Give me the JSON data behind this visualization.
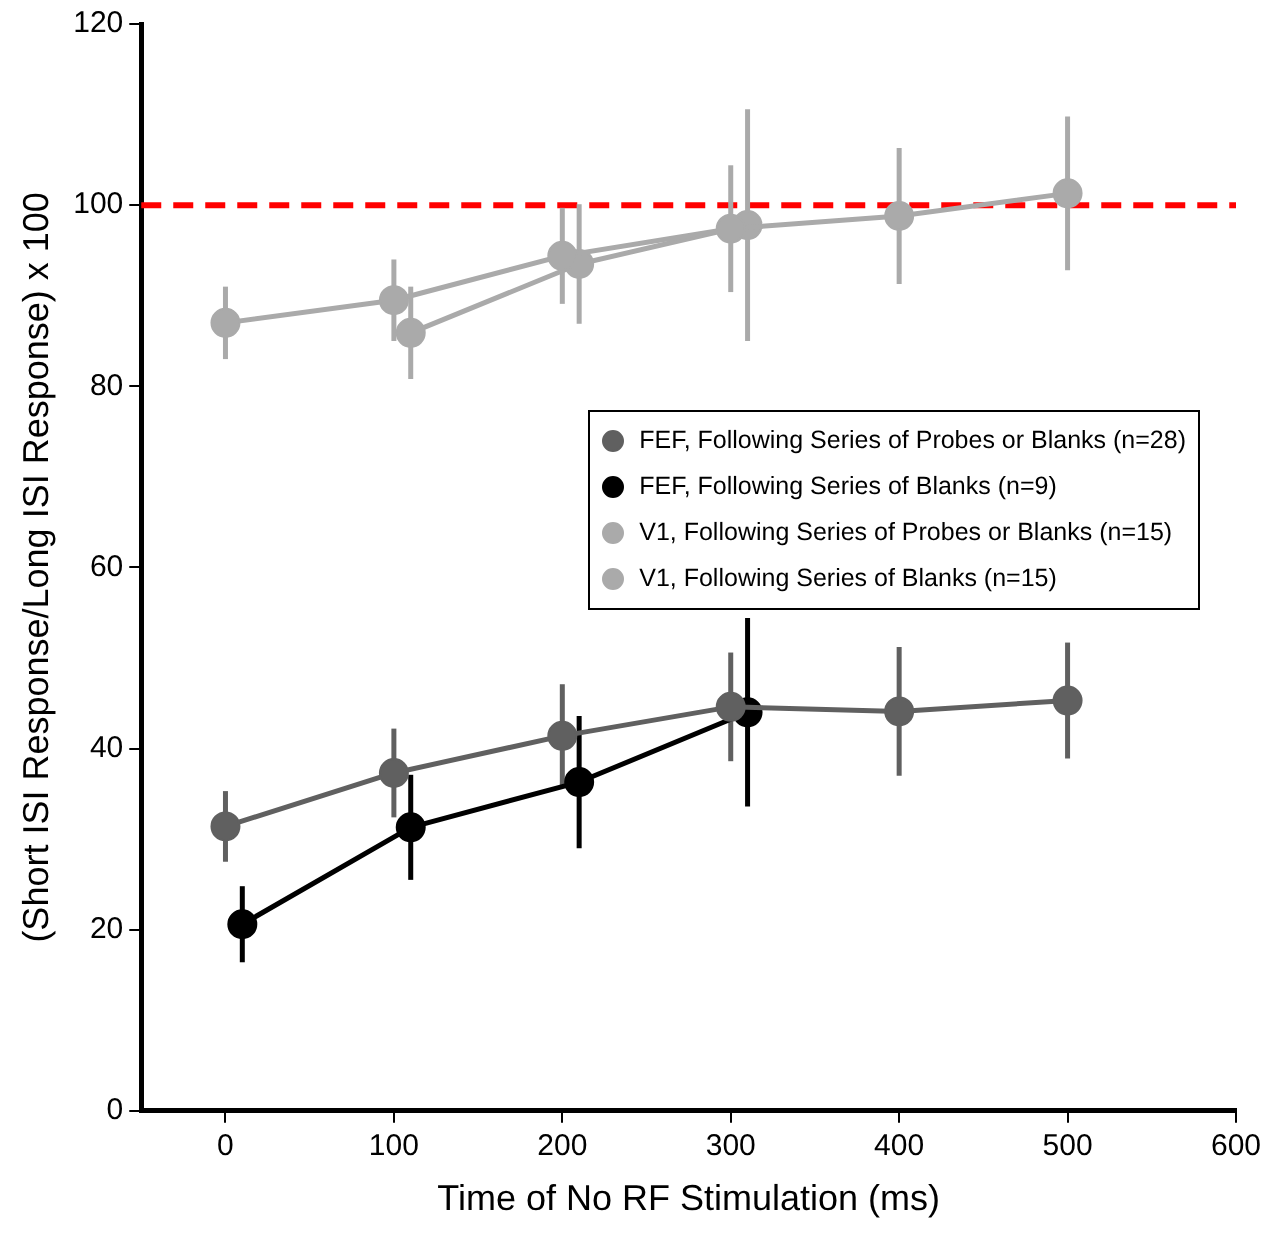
{
  "chart_data": {
    "type": "line",
    "xlabel": "Time of No RF Stimulation (ms)",
    "ylabel": "(Short ISI Response/Long ISI Response) x 100",
    "xlim": [
      -50,
      600
    ],
    "xticks": [
      0,
      100,
      200,
      300,
      400,
      500,
      600
    ],
    "ylim": [
      0,
      120
    ],
    "yticks": [
      0,
      20,
      40,
      60,
      80,
      100,
      120
    ],
    "grid": false,
    "legend": "right",
    "marker": "circle",
    "line_style": "solid",
    "ref_lines": [
      {
        "axis": "y",
        "value": 100,
        "color": "#ff0000",
        "line_style": "dashed"
      }
    ],
    "series": [
      {
        "name": "FEF, Following Series of Probes or Blanks (n=28)",
        "color": "#606060",
        "x": [
          0,
          100,
          200,
          300,
          400,
          500
        ],
        "values": [
          31.4,
          37.3,
          41.4,
          44.6,
          44.1,
          45.3
        ],
        "errors": [
          3.9,
          4.9,
          5.7,
          6.0,
          7.1,
          6.4
        ]
      },
      {
        "name": "FEF, Following Series of Blanks (n=9)",
        "color": "#000000",
        "x": [
          10,
          110,
          210,
          310
        ],
        "values": [
          20.6,
          31.3,
          36.3,
          44.0
        ],
        "errors": [
          4.2,
          5.8,
          7.3,
          10.4
        ]
      },
      {
        "name": "V1, Following Series of Probes or Blanks (n=15)",
        "color": "#aaaaaa",
        "x": [
          0,
          100,
          200,
          300,
          400,
          500
        ],
        "values": [
          87.0,
          89.5,
          94.4,
          97.4,
          98.8,
          101.3
        ],
        "errors": [
          4.0,
          4.5,
          5.3,
          7.0,
          7.5,
          8.5
        ]
      },
      {
        "name": "V1, Following Series of Blanks (n=15)",
        "color": "#aaaaaa",
        "x": [
          110,
          210,
          310
        ],
        "values": [
          85.9,
          93.5,
          97.8
        ],
        "errors": [
          5.1,
          6.6,
          12.8
        ]
      }
    ]
  }
}
